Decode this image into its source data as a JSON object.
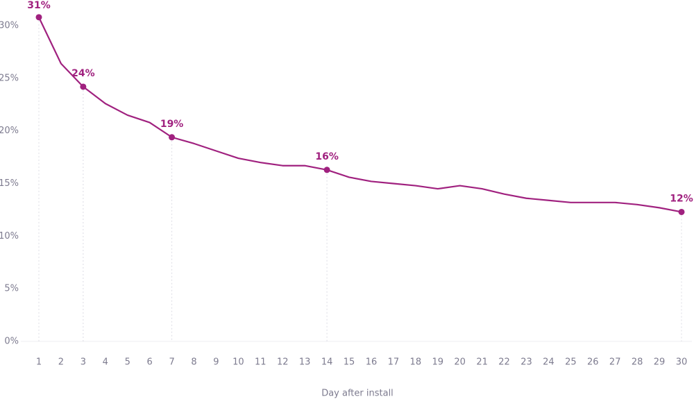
{
  "chart_data": {
    "type": "line",
    "x_label": "Day after install",
    "x": [
      1,
      2,
      3,
      4,
      5,
      6,
      7,
      8,
      9,
      10,
      11,
      12,
      13,
      14,
      15,
      16,
      17,
      18,
      19,
      20,
      21,
      22,
      23,
      24,
      25,
      26,
      27,
      28,
      29,
      30
    ],
    "values": [
      30.8,
      26.4,
      24.2,
      22.6,
      21.5,
      20.8,
      19.4,
      18.8,
      18.1,
      17.4,
      17.0,
      16.7,
      16.7,
      16.3,
      15.6,
      15.2,
      15.0,
      14.8,
      14.5,
      14.8,
      14.5,
      14.0,
      13.6,
      13.4,
      13.2,
      13.2,
      13.2,
      13.0,
      12.7,
      12.3
    ],
    "value_labels": [
      "31%",
      null,
      "24%",
      null,
      null,
      null,
      "19%",
      null,
      null,
      null,
      null,
      null,
      null,
      "16%",
      null,
      null,
      null,
      null,
      null,
      null,
      null,
      null,
      null,
      null,
      null,
      null,
      null,
      null,
      null,
      "12%"
    ],
    "color": "#a0217f",
    "xlim": [
      1,
      30
    ],
    "xticks": [
      1,
      2,
      3,
      4,
      5,
      6,
      7,
      8,
      9,
      10,
      11,
      12,
      13,
      14,
      15,
      16,
      17,
      18,
      19,
      20,
      21,
      22,
      23,
      24,
      25,
      26,
      27,
      28,
      29,
      30
    ],
    "ylim": [
      0,
      30
    ],
    "yticks": [
      {
        "value": 0,
        "label": "0%"
      },
      {
        "value": 5,
        "label": "5%"
      },
      {
        "value": 10,
        "label": "10%"
      },
      {
        "value": 15,
        "label": "15%"
      },
      {
        "value": 20,
        "label": "20%"
      },
      {
        "value": 25,
        "label": "25%"
      },
      {
        "value": 30,
        "label": "30%"
      }
    ]
  }
}
